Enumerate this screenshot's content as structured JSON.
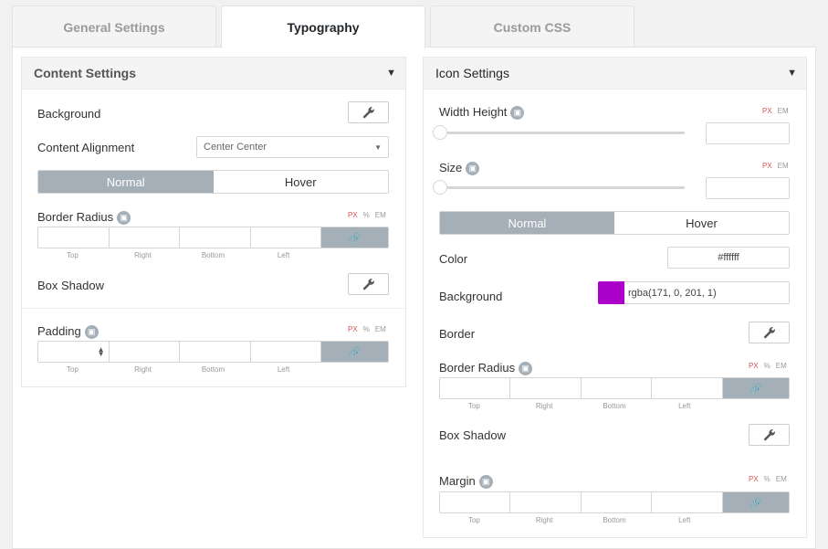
{
  "tabs": [
    {
      "label": "General Settings"
    },
    {
      "label": "Typography"
    },
    {
      "label": "Custom CSS"
    }
  ],
  "content_settings": {
    "title": "Content Settings",
    "background_label": "Background",
    "alignment_label": "Content Alignment",
    "alignment_value": "Center Center",
    "state_normal": "Normal",
    "state_hover": "Hover",
    "border_radius_label": "Border Radius",
    "units": [
      "PX",
      "%",
      "EM"
    ],
    "dim_labels": [
      "Top",
      "Right",
      "Bottom",
      "Left"
    ],
    "box_shadow_label": "Box Shadow",
    "padding_label": "Padding"
  },
  "icon_settings": {
    "title": "Icon Settings",
    "width_height_label": "Width Height",
    "size_label": "Size",
    "units_px_em": [
      "PX",
      "EM"
    ],
    "units": [
      "PX",
      "%",
      "EM"
    ],
    "state_normal": "Normal",
    "state_hover": "Hover",
    "color_label": "Color",
    "color_value": "#ffffff",
    "background_label": "Background",
    "background_value": "rgba(171, 0, 201, 1)",
    "background_swatch": "#ab00c9",
    "border_label": "Border",
    "border_radius_label": "Border Radius",
    "dim_labels": [
      "Top",
      "Right",
      "Bottom",
      "Left"
    ],
    "box_shadow_label": "Box Shadow",
    "margin_label": "Margin"
  },
  "colors": {
    "toggle_active": "#a4afb7",
    "unit_active": "#d9534f"
  }
}
